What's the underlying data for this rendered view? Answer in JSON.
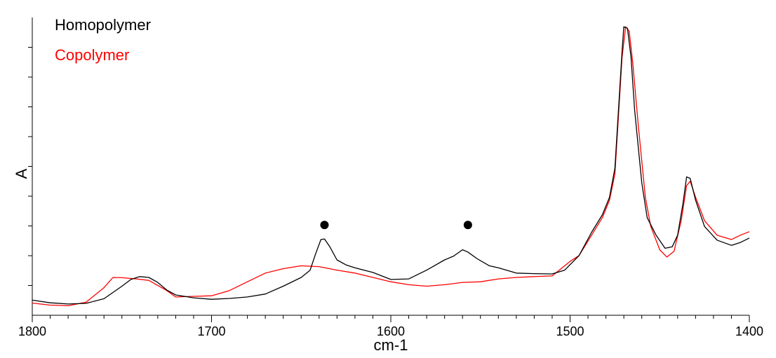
{
  "chart_data": {
    "type": "line",
    "xlabel": "cm-1",
    "ylabel": "A",
    "x_range": [
      1800,
      1400
    ],
    "y_range": [
      0,
      1
    ],
    "x_ticks": [
      1800,
      1700,
      1600,
      1500,
      1400
    ],
    "x_tick_labels": [
      "1800",
      "1700",
      "1600",
      "1500",
      "1400"
    ],
    "y_axis_numbered": false,
    "grid": false,
    "legend_position": "top-left",
    "colors": {
      "homopolymer": "#000000",
      "copolymer": "#ff0000"
    },
    "series": [
      {
        "name": "Homopolymer",
        "color": "#000000",
        "points": [
          [
            1800,
            0.047
          ],
          [
            1790,
            0.038
          ],
          [
            1780,
            0.034
          ],
          [
            1770,
            0.036
          ],
          [
            1760,
            0.052
          ],
          [
            1750,
            0.095
          ],
          [
            1745,
            0.118
          ],
          [
            1740,
            0.128
          ],
          [
            1735,
            0.125
          ],
          [
            1730,
            0.108
          ],
          [
            1725,
            0.082
          ],
          [
            1720,
            0.065
          ],
          [
            1710,
            0.055
          ],
          [
            1700,
            0.05
          ],
          [
            1690,
            0.053
          ],
          [
            1680,
            0.058
          ],
          [
            1670,
            0.068
          ],
          [
            1660,
            0.095
          ],
          [
            1650,
            0.125
          ],
          [
            1645,
            0.15
          ],
          [
            1642,
            0.205
          ],
          [
            1639,
            0.255
          ],
          [
            1637,
            0.257
          ],
          [
            1634,
            0.23
          ],
          [
            1630,
            0.185
          ],
          [
            1625,
            0.168
          ],
          [
            1620,
            0.158
          ],
          [
            1610,
            0.142
          ],
          [
            1600,
            0.118
          ],
          [
            1590,
            0.12
          ],
          [
            1580,
            0.15
          ],
          [
            1570,
            0.185
          ],
          [
            1565,
            0.198
          ],
          [
            1560,
            0.22
          ],
          [
            1557,
            0.212
          ],
          [
            1552,
            0.19
          ],
          [
            1545,
            0.165
          ],
          [
            1540,
            0.158
          ],
          [
            1530,
            0.14
          ],
          [
            1520,
            0.138
          ],
          [
            1510,
            0.137
          ],
          [
            1503,
            0.15
          ],
          [
            1495,
            0.2
          ],
          [
            1488,
            0.28
          ],
          [
            1482,
            0.34
          ],
          [
            1478,
            0.4
          ],
          [
            1475,
            0.5
          ],
          [
            1473,
            0.7
          ],
          [
            1471,
            0.9
          ],
          [
            1470,
            0.985
          ],
          [
            1468,
            0.98
          ],
          [
            1466,
            0.88
          ],
          [
            1464,
            0.7
          ],
          [
            1460,
            0.45
          ],
          [
            1457,
            0.33
          ],
          [
            1452,
            0.27
          ],
          [
            1447,
            0.225
          ],
          [
            1443,
            0.23
          ],
          [
            1440,
            0.27
          ],
          [
            1437,
            0.38
          ],
          [
            1435,
            0.47
          ],
          [
            1433,
            0.465
          ],
          [
            1430,
            0.39
          ],
          [
            1425,
            0.3
          ],
          [
            1418,
            0.253
          ],
          [
            1410,
            0.235
          ],
          [
            1405,
            0.245
          ],
          [
            1400,
            0.26
          ]
        ]
      },
      {
        "name": "Copolymer",
        "color": "#ff0000",
        "points": [
          [
            1800,
            0.037
          ],
          [
            1790,
            0.03
          ],
          [
            1780,
            0.028
          ],
          [
            1770,
            0.04
          ],
          [
            1760,
            0.09
          ],
          [
            1755,
            0.125
          ],
          [
            1750,
            0.124
          ],
          [
            1742,
            0.12
          ],
          [
            1735,
            0.115
          ],
          [
            1725,
            0.08
          ],
          [
            1720,
            0.058
          ],
          [
            1710,
            0.06
          ],
          [
            1700,
            0.062
          ],
          [
            1690,
            0.08
          ],
          [
            1680,
            0.11
          ],
          [
            1670,
            0.14
          ],
          [
            1660,
            0.155
          ],
          [
            1650,
            0.165
          ],
          [
            1640,
            0.162
          ],
          [
            1630,
            0.15
          ],
          [
            1620,
            0.14
          ],
          [
            1610,
            0.125
          ],
          [
            1600,
            0.11
          ],
          [
            1590,
            0.1
          ],
          [
            1580,
            0.095
          ],
          [
            1570,
            0.1
          ],
          [
            1560,
            0.108
          ],
          [
            1550,
            0.11
          ],
          [
            1540,
            0.12
          ],
          [
            1530,
            0.125
          ],
          [
            1520,
            0.128
          ],
          [
            1510,
            0.13
          ],
          [
            1500,
            0.18
          ],
          [
            1495,
            0.2
          ],
          [
            1488,
            0.27
          ],
          [
            1482,
            0.33
          ],
          [
            1478,
            0.39
          ],
          [
            1475,
            0.48
          ],
          [
            1473,
            0.68
          ],
          [
            1471,
            0.88
          ],
          [
            1469,
            0.985
          ],
          [
            1467,
            0.97
          ],
          [
            1465,
            0.86
          ],
          [
            1462,
            0.65
          ],
          [
            1458,
            0.4
          ],
          [
            1455,
            0.3
          ],
          [
            1450,
            0.22
          ],
          [
            1446,
            0.195
          ],
          [
            1442,
            0.215
          ],
          [
            1438,
            0.32
          ],
          [
            1435,
            0.44
          ],
          [
            1433,
            0.455
          ],
          [
            1430,
            0.4
          ],
          [
            1425,
            0.32
          ],
          [
            1418,
            0.27
          ],
          [
            1410,
            0.255
          ],
          [
            1405,
            0.27
          ],
          [
            1400,
            0.282
          ]
        ]
      }
    ],
    "annotations": [
      {
        "type": "dot",
        "x": 1637,
        "y": 0.305
      },
      {
        "type": "dot",
        "x": 1557,
        "y": 0.305
      }
    ]
  }
}
